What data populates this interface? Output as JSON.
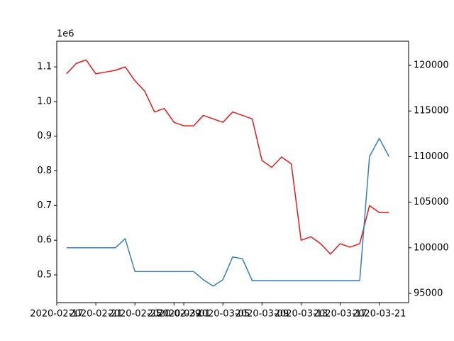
{
  "chart_data": {
    "type": "line",
    "x": [
      "2020-02-18",
      "2020-02-19",
      "2020-02-20",
      "2020-02-21",
      "2020-02-22",
      "2020-02-23",
      "2020-02-24",
      "2020-02-25",
      "2020-02-26",
      "2020-02-27",
      "2020-02-28",
      "2020-02-29",
      "2020-03-01",
      "2020-03-02",
      "2020-03-03",
      "2020-03-04",
      "2020-03-05",
      "2020-03-06",
      "2020-03-07",
      "2020-03-08",
      "2020-03-09",
      "2020-03-10",
      "2020-03-11",
      "2020-03-12",
      "2020-03-13",
      "2020-03-14",
      "2020-03-15",
      "2020-03-16",
      "2020-03-17",
      "2020-03-18",
      "2020-03-19",
      "2020-03-20",
      "2020-03-21",
      "2020-03-22"
    ],
    "series": [
      {
        "color": "#e41a1c",
        "axis": "y",
        "values": [
          1.08,
          1.11,
          1.12,
          1.08,
          1.085,
          1.09,
          1.1,
          1.06,
          1.03,
          0.97,
          0.98,
          0.94,
          0.93,
          0.93,
          0.96,
          0.95,
          0.94,
          0.97,
          0.96,
          0.95,
          0.83,
          0.81,
          0.84,
          0.82,
          0.6,
          0.61,
          0.59,
          0.56,
          0.59,
          0.58,
          0.59,
          0.7,
          0.68,
          0.68
        ]
      },
      {
        "color": "#377eb8",
        "axis": "y2",
        "values": [
          100000,
          100000,
          100000,
          100000,
          100000,
          100000,
          101000,
          97400,
          97400,
          97400,
          97400,
          97400,
          97400,
          97400,
          96500,
          95800,
          96500,
          99000,
          98800,
          96400,
          96400,
          96400,
          96400,
          96400,
          96400,
          96400,
          96400,
          96400,
          96400,
          96400,
          96400,
          110000,
          112000,
          110000
        ]
      }
    ],
    "xlim": [
      "2020-02-17",
      "2020-03-24"
    ],
    "xticks": [
      "2020-02-17",
      "2020-02-21",
      "2020-02-25",
      "2020-02-29",
      "2020-03-01",
      "2020-03-05",
      "2020-03-09",
      "2020-03-13",
      "2020-03-17",
      "2020-03-21"
    ],
    "ylim": [
      0.42,
      1.174
    ],
    "yticks": [
      0.5,
      0.6,
      0.7,
      0.8,
      0.9,
      {
        "value": 1,
        "label": "1.0"
      },
      1.1
    ],
    "y_offset_label": "1e6",
    "y2lim": [
      93988,
      122648
    ],
    "y2ticks": [
      95000,
      100000,
      105000,
      110000,
      115000,
      120000
    ]
  }
}
